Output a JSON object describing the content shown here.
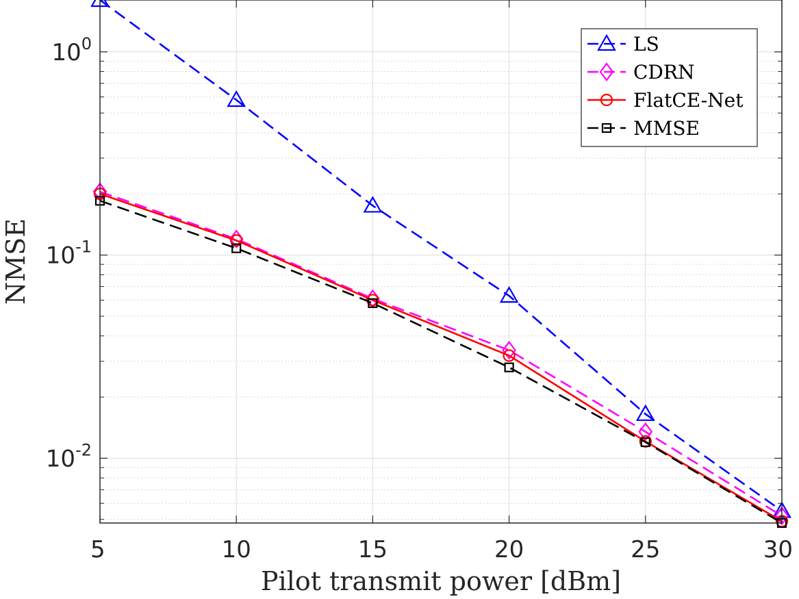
{
  "chart_data": {
    "type": "line",
    "xlabel": "Pilot transmit power [dBm]",
    "ylabel": "NMSE",
    "x": [
      5,
      10,
      15,
      20,
      25,
      30
    ],
    "xlim": [
      5,
      30
    ],
    "ylim": [
      0.0048,
      1.8
    ],
    "yscale": "log",
    "xticks": [
      "5",
      "10",
      "15",
      "20",
      "25",
      "30"
    ],
    "yticks": [
      {
        "value": 1,
        "base": "10",
        "exp": "0"
      },
      {
        "value": 0.1,
        "base": "10",
        "exp": "-1"
      },
      {
        "value": 0.01,
        "base": "10",
        "exp": "-2"
      }
    ],
    "grid": true,
    "legend_position": "top-right",
    "series": [
      {
        "name": "LS",
        "values": [
          1.8,
          0.58,
          0.175,
          0.063,
          0.0165,
          0.0055
        ],
        "color": "#0000ff",
        "dash": "dashed",
        "marker": "triangle"
      },
      {
        "name": "CDRN",
        "values": [
          0.205,
          0.12,
          0.061,
          0.034,
          0.0135,
          0.0052
        ],
        "color": "#ff00ff",
        "dash": "dashed",
        "marker": "diamond"
      },
      {
        "name": "FlatCE-Net",
        "values": [
          0.2,
          0.118,
          0.06,
          0.032,
          0.0121,
          0.0049
        ],
        "color": "#ff0000",
        "dash": "solid",
        "marker": "circle"
      },
      {
        "name": "MMSE",
        "values": [
          0.185,
          0.108,
          0.058,
          0.028,
          0.012,
          0.0048
        ],
        "color": "#000000",
        "dash": "dashed",
        "marker": "square"
      }
    ]
  }
}
